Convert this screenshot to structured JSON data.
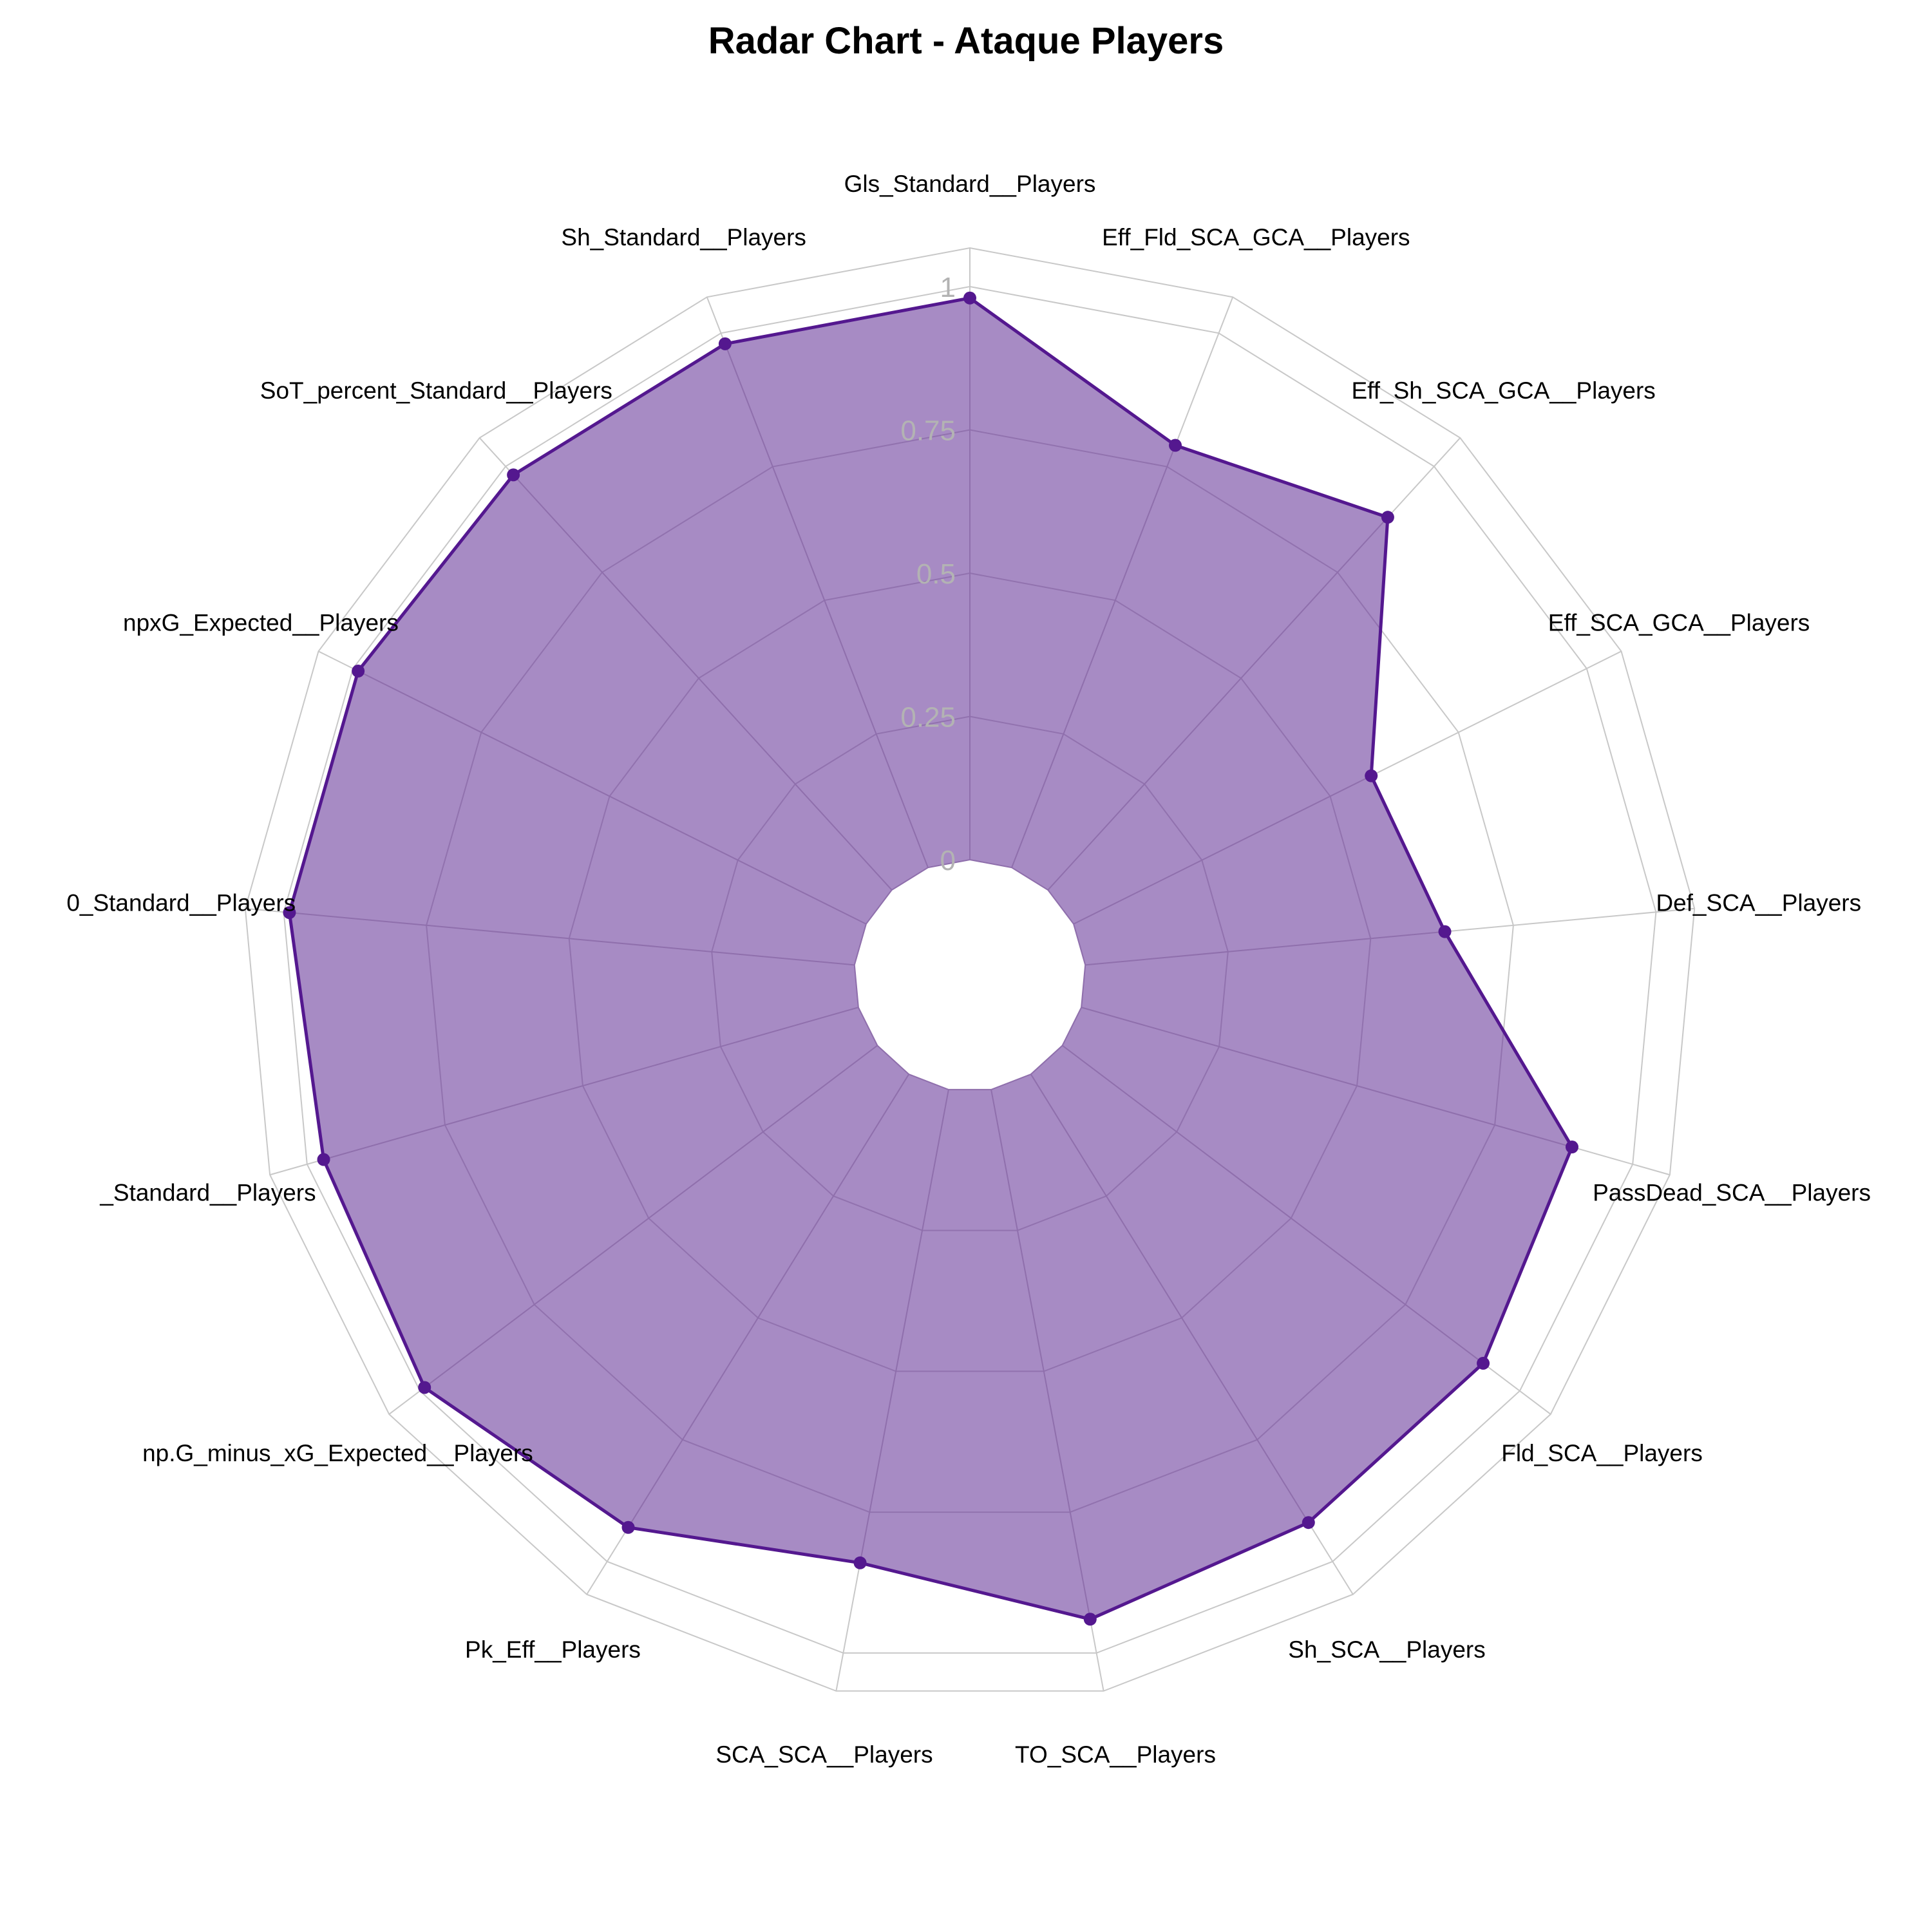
{
  "chart_data": {
    "type": "radar",
    "title": "Radar Chart - Ataque Players",
    "rlim": [
      0,
      1
    ],
    "r_ticks": [
      "0",
      "0.25",
      "0.5",
      "0.75",
      "1"
    ],
    "grid": true,
    "categories": [
      "Gls_Standard__Players",
      "Eff_Fld_SCA_GCA__Players",
      "Eff_Sh_SCA_GCA__Players",
      "Eff_SCA_GCA__Players",
      "Def_SCA__Players",
      "PassDead_SCA__Players",
      "Fld_SCA__Players",
      "Sh_SCA__Players",
      "TO_SCA__Players",
      "SCA_SCA__Players",
      "Pk_Eff__Players",
      "np.G_minus_xG_Expected__Players",
      "_Standard__Players",
      "0_Standard__Players",
      "npxG_Expected__Players",
      "SoT_percent_Standard__Players",
      "Sh_Standard__Players"
    ],
    "series": [
      {
        "values": [
          0.98,
          0.79,
          0.88,
          0.58,
          0.63,
          0.89,
          0.92,
          0.92,
          0.94,
          0.84,
          0.93,
          0.99,
          0.97,
          0.99,
          0.99,
          0.98,
          0.98
        ],
        "fill_color": "#a78bc4",
        "line_color": "#54188f"
      }
    ],
    "colors": {
      "grid": "#c8c8c8",
      "inner_grid": "#8f6fac",
      "tick": "#b3b3b3"
    }
  }
}
